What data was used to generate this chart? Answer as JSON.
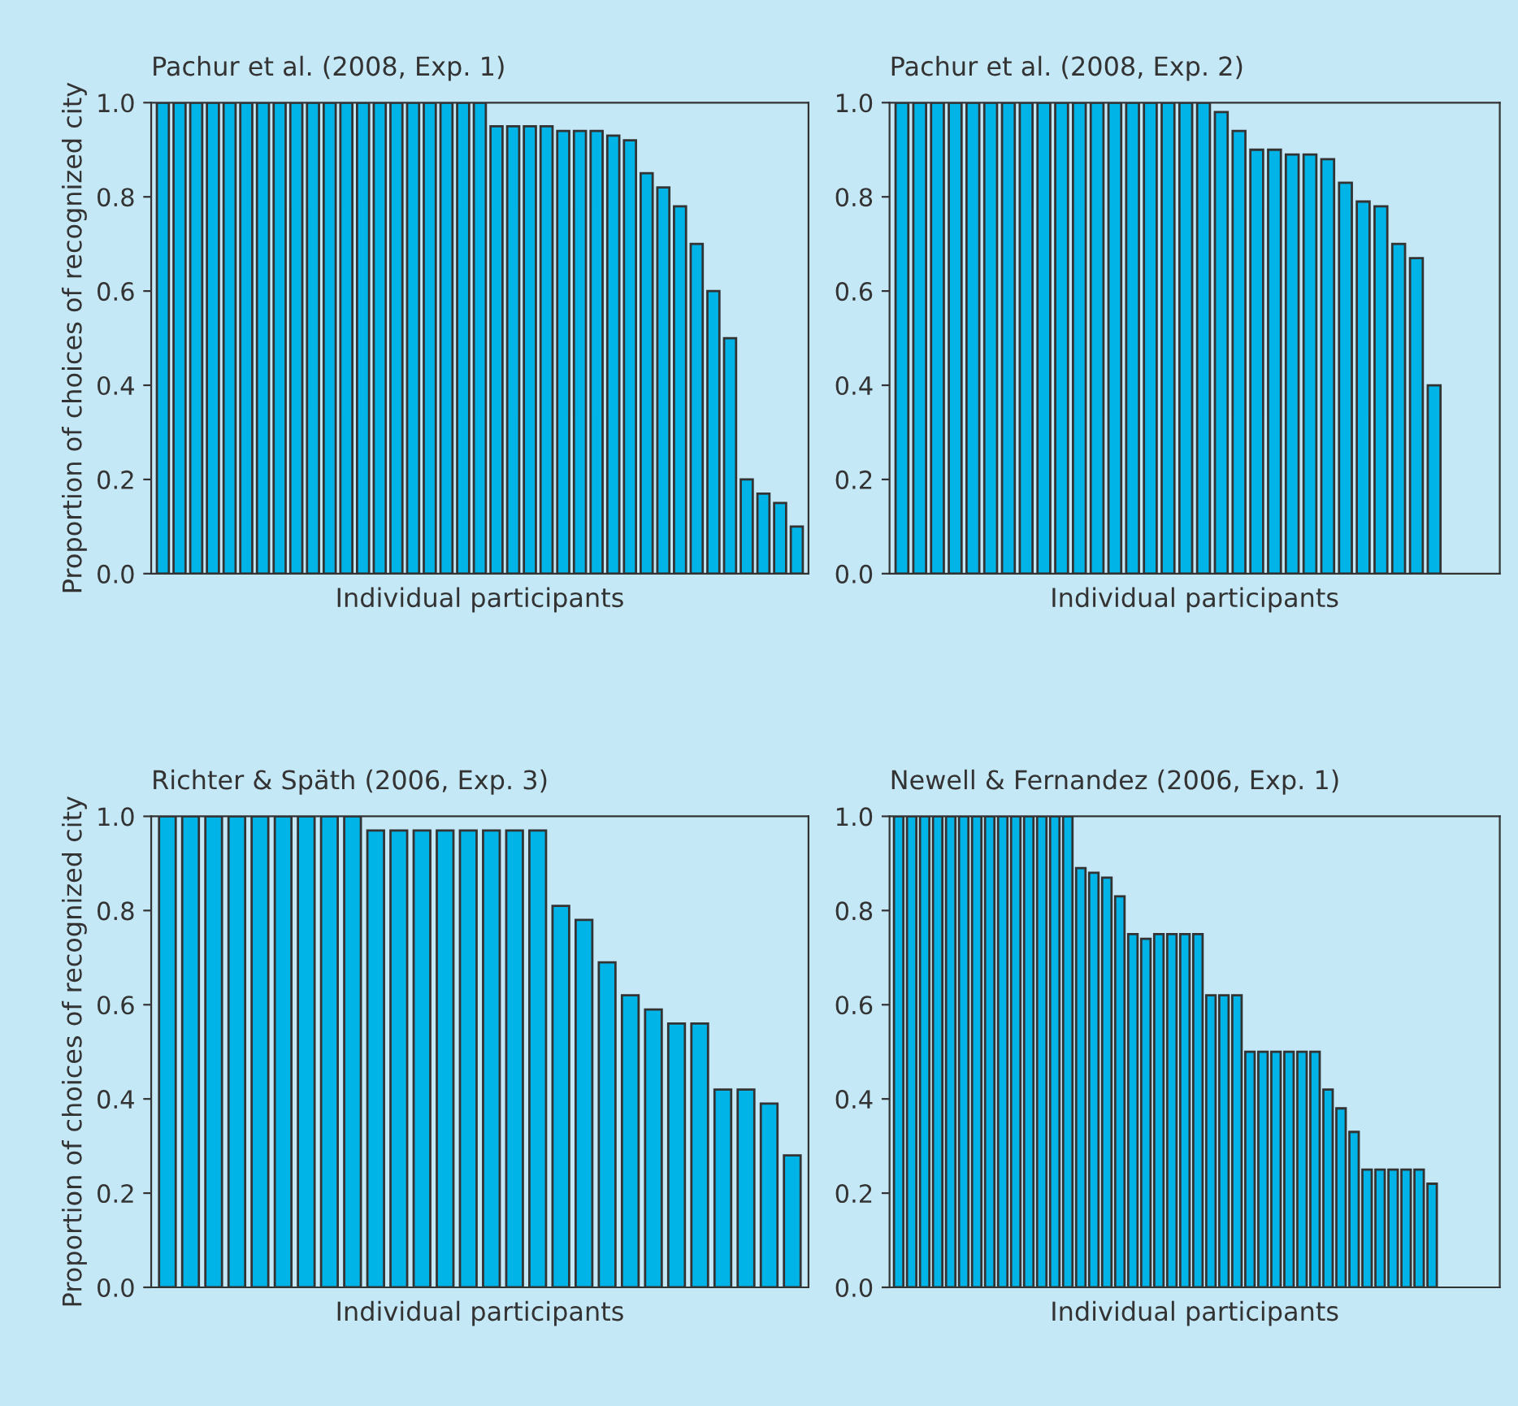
{
  "chart_data": [
    {
      "type": "bar",
      "title": "Pachur et al. (2008, Exp. 1)",
      "xlabel": "Individual participants",
      "ylabel": "Proportion of choices of recognized city",
      "categories": [
        null,
        null,
        null,
        null,
        null,
        null,
        null,
        null,
        null,
        null,
        null,
        null,
        null,
        null,
        null,
        null,
        null,
        null,
        null,
        null,
        null,
        null,
        null,
        null,
        null,
        null,
        null,
        null,
        null,
        null,
        null,
        null,
        null,
        null,
        null,
        null,
        null,
        null,
        null
      ],
      "values": [
        1,
        1,
        1,
        1,
        1,
        1,
        1,
        1,
        1,
        1,
        1,
        1,
        1,
        1,
        1,
        1,
        1,
        1,
        1,
        1,
        0.95,
        0.95,
        0.95,
        0.95,
        0.94,
        0.94,
        0.94,
        0.93,
        0.92,
        0.85,
        0.82,
        0.78,
        0.7,
        0.6,
        0.5,
        0.2,
        0.17,
        0.15,
        0.1
      ],
      "color": "#00b4e8",
      "ylim": [
        0,
        1
      ],
      "yticks": [
        {
          "value": 0,
          "label": "0.0"
        },
        {
          "value": 0.2,
          "label": "0.2"
        },
        {
          "value": 0.4,
          "label": "0.4"
        },
        {
          "value": 0.6,
          "label": "0.6"
        },
        {
          "value": 0.8,
          "label": "0.8"
        },
        {
          "value": 1,
          "label": "1.0"
        }
      ],
      "tick_labels": "y",
      "grid": false,
      "legend": false
    },
    {
      "type": "bar",
      "title": "Richter & Späth (2006, Exp. 3)",
      "xlabel": "Individual participants",
      "ylabel": "Proportion of choices of recognized city",
      "categories": [
        null,
        null,
        null,
        null,
        null,
        null,
        null,
        null,
        null,
        null,
        null,
        null,
        null,
        null,
        null,
        null,
        null,
        null,
        null,
        null,
        null,
        null,
        null,
        null,
        null,
        null,
        null,
        null
      ],
      "values": [
        1,
        1,
        1,
        1,
        1,
        1,
        1,
        1,
        1,
        0.97,
        0.97,
        0.97,
        0.97,
        0.97,
        0.97,
        0.97,
        0.97,
        0.81,
        0.78,
        0.69,
        0.62,
        0.59,
        0.56,
        0.56,
        0.42,
        0.42,
        0.39,
        0.28
      ],
      "color": "#00b4e8",
      "ylim": [
        0,
        1
      ],
      "yticks": [
        {
          "value": 0,
          "label": "0.0"
        },
        {
          "value": 0.2,
          "label": "0.2"
        },
        {
          "value": 0.4,
          "label": "0.4"
        },
        {
          "value": 0.6,
          "label": "0.6"
        },
        {
          "value": 0.8,
          "label": "0.8"
        },
        {
          "value": 1,
          "label": "1.0"
        }
      ],
      "tick_labels": "y",
      "grid": false,
      "legend": false
    },
    {
      "type": "bar",
      "title": "Pachur et al. (2008, Exp. 2)",
      "xlabel": "Individual participants",
      "categories": [
        null,
        null,
        null,
        null,
        null,
        null,
        null,
        null,
        null,
        null,
        null,
        null,
        null,
        null,
        null,
        null,
        null,
        null,
        null,
        null,
        null,
        null,
        null,
        null,
        null,
        null,
        null,
        null,
        null,
        null,
        null
      ],
      "values": [
        1,
        1,
        1,
        1,
        1,
        1,
        1,
        1,
        1,
        1,
        1,
        1,
        1,
        1,
        1,
        1,
        1,
        1,
        0.98,
        0.94,
        0.9,
        0.9,
        0.89,
        0.89,
        0.88,
        0.83,
        0.79,
        0.78,
        0.7,
        0.67,
        0.4
      ],
      "color": "#00b4e8",
      "ylim": [
        0,
        1
      ],
      "yticks": [
        {
          "value": 0,
          "label": "0.0"
        },
        {
          "value": 0.2,
          "label": "0.2"
        },
        {
          "value": 0.4,
          "label": "0.4"
        },
        {
          "value": 0.6,
          "label": "0.6"
        },
        {
          "value": 0.8,
          "label": "0.8"
        },
        {
          "value": 1,
          "label": "1.0"
        }
      ],
      "tick_labels": "y",
      "grid": false,
      "legend": false
    },
    {
      "type": "bar",
      "title": "Newell & Fernandez (2006, Exp. 1)",
      "xlabel": "Individual participants",
      "categories": [
        null,
        null,
        null,
        null,
        null,
        null,
        null,
        null,
        null,
        null,
        null,
        null,
        null,
        null,
        null,
        null,
        null,
        null,
        null,
        null,
        null,
        null,
        null,
        null,
        null,
        null,
        null,
        null,
        null,
        null,
        null,
        null,
        null,
        null,
        null,
        null,
        null,
        null,
        null,
        null,
        null,
        null
      ],
      "values": [
        1,
        1,
        1,
        1,
        1,
        1,
        1,
        1,
        1,
        1,
        1,
        1,
        1,
        1,
        0.89,
        0.88,
        0.87,
        0.83,
        0.75,
        0.74,
        0.75,
        0.75,
        0.75,
        0.75,
        0.62,
        0.62,
        0.62,
        0.5,
        0.5,
        0.5,
        0.5,
        0.5,
        0.5,
        0.42,
        0.38,
        0.33,
        0.25,
        0.25,
        0.25,
        0.25,
        0.25,
        0.22
      ],
      "color": "#00b4e8",
      "ylim": [
        0,
        1
      ],
      "yticks": [
        {
          "value": 0,
          "label": "0.0"
        },
        {
          "value": 0.2,
          "label": "0.2"
        },
        {
          "value": 0.4,
          "label": "0.4"
        },
        {
          "value": 0.6,
          "label": "0.6"
        },
        {
          "value": 0.8,
          "label": "0.8"
        },
        {
          "value": 1,
          "label": "1.0"
        }
      ],
      "tick_labels": "y",
      "grid": false,
      "legend": false
    }
  ]
}
